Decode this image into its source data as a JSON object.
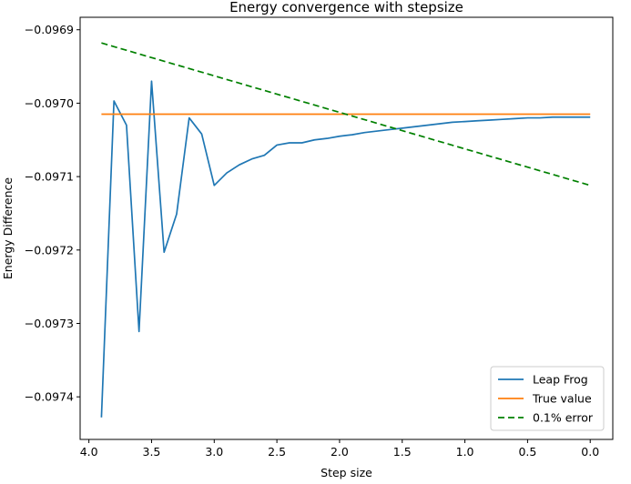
{
  "chart_data": {
    "type": "line",
    "title": "Energy convergence with stepsize",
    "xlabel": "Step size",
    "ylabel": "Energy Difference",
    "xlim": [
      4.07,
      -0.18
    ],
    "ylim": [
      -0.097458,
      -0.096883
    ],
    "x_inverted": true,
    "grid": false,
    "legend_position": "lower right",
    "xticks": [
      4.0,
      3.5,
      3.0,
      2.5,
      2.0,
      1.5,
      1.0,
      0.5,
      0.0
    ],
    "xtick_labels": [
      "4.0",
      "3.5",
      "3.0",
      "2.5",
      "2.0",
      "1.5",
      "1.0",
      "0.5",
      "0.0"
    ],
    "yticks": [
      -0.0969,
      -0.097,
      -0.0971,
      -0.0972,
      -0.0973,
      -0.0974
    ],
    "ytick_labels": [
      "−0.0969",
      "−0.0970",
      "−0.0971",
      "−0.0972",
      "−0.0973",
      "−0.0974"
    ],
    "series": [
      {
        "name": "Leap Frog",
        "color": "#1f77b4",
        "style": "solid",
        "x": [
          3.9,
          3.8,
          3.7,
          3.6,
          3.5,
          3.4,
          3.3,
          3.2,
          3.1,
          3.0,
          2.9,
          2.8,
          2.7,
          2.6,
          2.5,
          2.4,
          2.3,
          2.2,
          2.1,
          2.0,
          1.9,
          1.8,
          1.7,
          1.6,
          1.5,
          1.4,
          1.3,
          1.2,
          1.1,
          1.0,
          0.9,
          0.8,
          0.7,
          0.6,
          0.5,
          0.4,
          0.3,
          0.2,
          0.1,
          0.0
        ],
        "y": [
          -0.097428,
          -0.096997,
          -0.09703,
          -0.097311,
          -0.09697,
          -0.097203,
          -0.097151,
          -0.09702,
          -0.097042,
          -0.097112,
          -0.097095,
          -0.097084,
          -0.097076,
          -0.097071,
          -0.097057,
          -0.097054,
          -0.097054,
          -0.09705,
          -0.097048,
          -0.097045,
          -0.097043,
          -0.09704,
          -0.097038,
          -0.097036,
          -0.097034,
          -0.097032,
          -0.09703,
          -0.097028,
          -0.097026,
          -0.097025,
          -0.097024,
          -0.097023,
          -0.097022,
          -0.097021,
          -0.09702,
          -0.09702,
          -0.097019,
          -0.097019,
          -0.097019,
          -0.097019
        ]
      },
      {
        "name": "True value",
        "color": "#ff7f0e",
        "style": "solid",
        "x": [
          3.9,
          0.0
        ],
        "y": [
          -0.097015,
          -0.097015
        ]
      },
      {
        "name": "0.1% error",
        "color": "#008000",
        "style": "dashed",
        "x": [
          3.9,
          0.0
        ],
        "y": [
          -0.096918,
          -0.097112
        ]
      }
    ]
  }
}
